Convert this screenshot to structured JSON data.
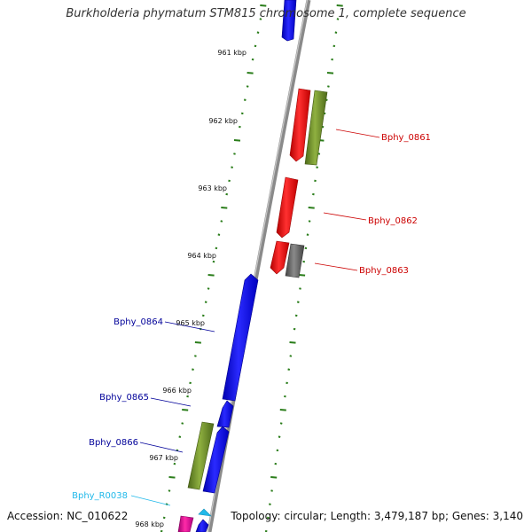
{
  "title": "Burkholderia phymatum STM815 chromosome 1, complete sequence",
  "footer": {
    "accession": "Accession: NC_010622",
    "summary": "Topology: circular; Length: 3,479,187 bp; Genes: 3,140"
  },
  "colors": {
    "backbone": "#8a8a8a",
    "tick": "#2a7d1a",
    "kbp_text": "#111111",
    "red_gene": "#ff0000",
    "olive_gene": "#6b8c2a",
    "blue_gene": "#0000ff",
    "gray_gene": "#707070",
    "magenta_gene": "#e0149b",
    "cyan_gene": "#21b9ea"
  },
  "kbp_labels": [
    {
      "text": "961 kbp",
      "kbp": 961
    },
    {
      "text": "962 kbp",
      "kbp": 962
    },
    {
      "text": "963 kbp",
      "kbp": 963
    },
    {
      "text": "964 kbp",
      "kbp": 964
    },
    {
      "text": "965 kbp",
      "kbp": 965
    },
    {
      "text": "966 kbp",
      "kbp": 966
    },
    {
      "text": "967 kbp",
      "kbp": 967
    },
    {
      "text": "968 kbp",
      "kbp": 968
    }
  ],
  "gene_labels": [
    {
      "name": "Bphy_0861",
      "color": "#cc0000",
      "side": "right"
    },
    {
      "name": "Bphy_0862",
      "color": "#cc0000",
      "side": "right"
    },
    {
      "name": "Bphy_0863",
      "color": "#cc0000",
      "side": "right"
    },
    {
      "name": "Bphy_0864",
      "color": "#000099",
      "side": "left"
    },
    {
      "name": "Bphy_0865",
      "color": "#000099",
      "side": "left"
    },
    {
      "name": "Bphy_0866",
      "color": "#000099",
      "side": "left"
    },
    {
      "name": "Bphy_R0038",
      "color": "#21b9ea",
      "side": "left"
    }
  ]
}
